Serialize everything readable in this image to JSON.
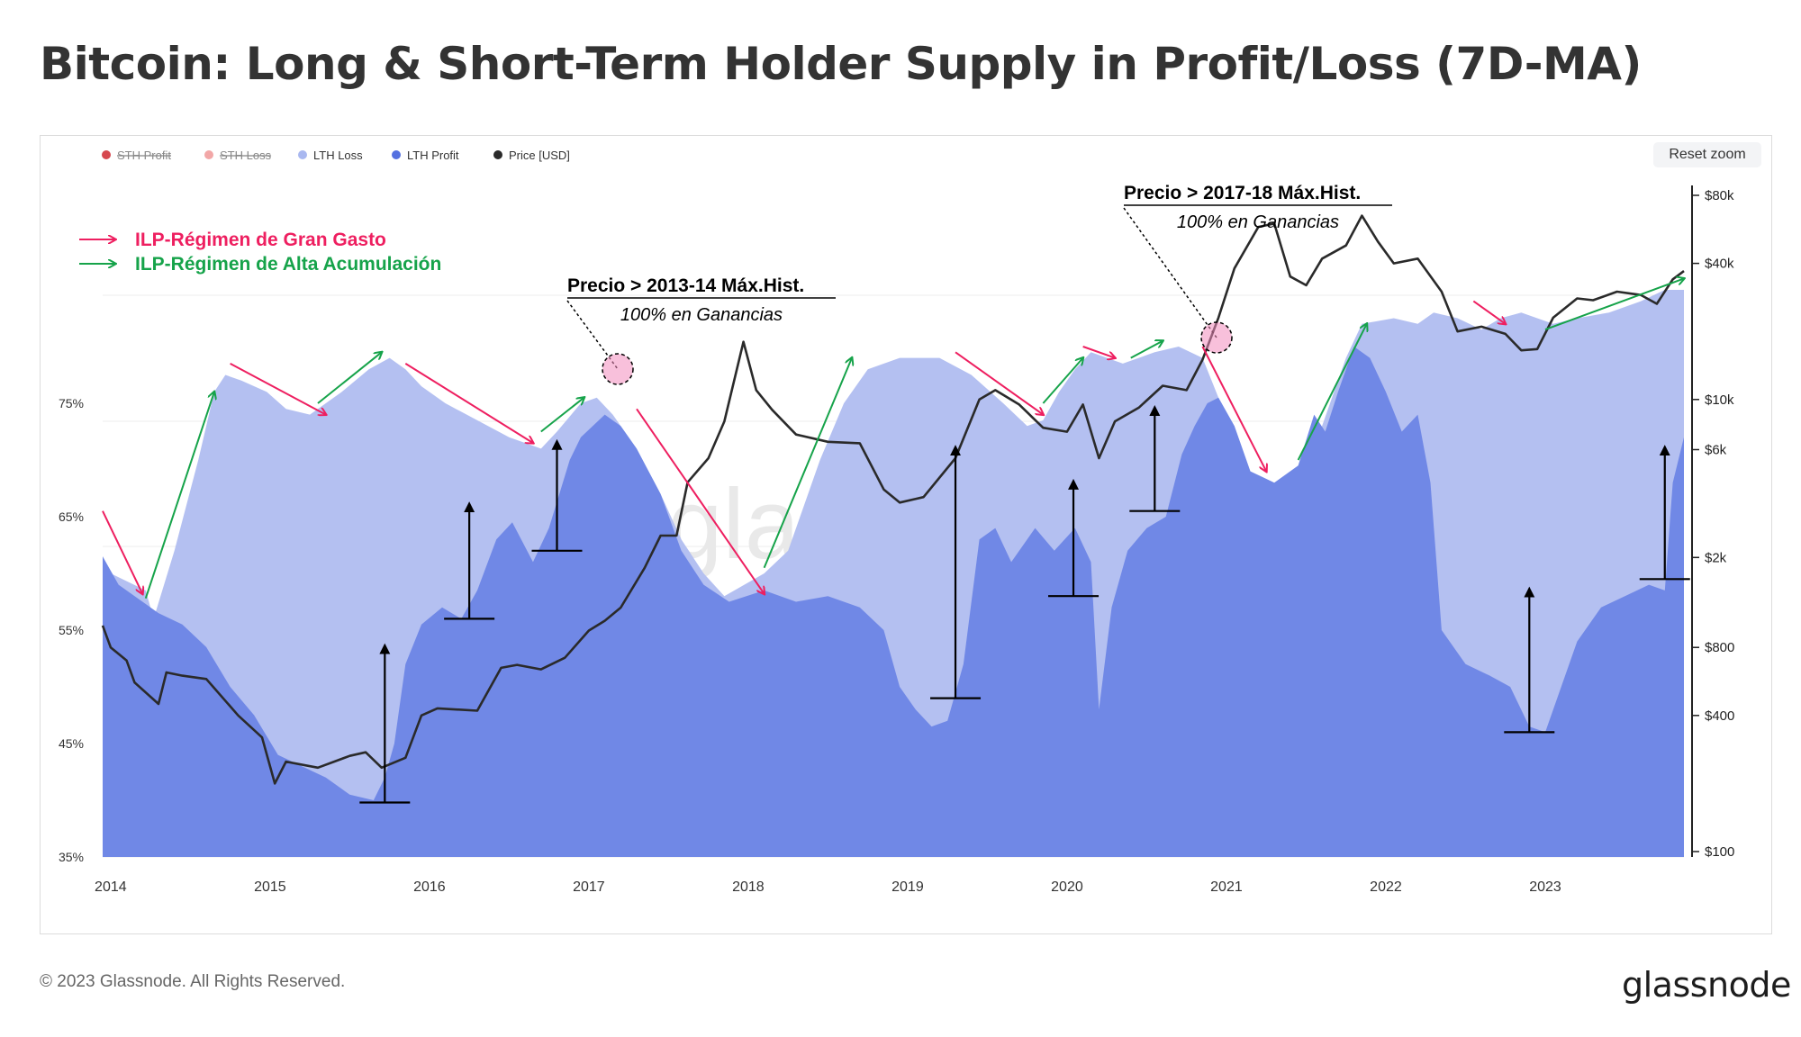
{
  "title": "Bitcoin: Long & Short-Term Holder Supply in Profit/Loss (7D-MA)",
  "reset_zoom_label": "Reset zoom",
  "footer": {
    "copyright": "© 2023 Glassnode. All Rights Reserved.",
    "logo": "glassnode"
  },
  "watermark": "glassnode",
  "colors": {
    "lth_loss": "#b4c0f1",
    "lth_profit": "#7088e6",
    "price": "#2a2a2a",
    "sth_profit": "#d6474e",
    "sth_loss": "#f2a7a7",
    "spending_arrow": "#ee1f60",
    "accumulation_arrow": "#16a34a",
    "annotation": "#000000"
  },
  "chart_data": {
    "type": "area",
    "legend": [
      {
        "label": "STH Profit",
        "color": "#d6474e",
        "hidden": true
      },
      {
        "label": "STH Loss",
        "color": "#f2a7a7",
        "hidden": true
      },
      {
        "label": "LTH Loss",
        "color": "#a9b8f0",
        "hidden": false
      },
      {
        "label": "LTH Profit",
        "color": "#5470e0",
        "hidden": false
      },
      {
        "label": "Price [USD]",
        "color": "#2a2a2a",
        "hidden": false
      }
    ],
    "legend_position": "top-left",
    "x_ticks": [
      "2014",
      "2015",
      "2016",
      "2017",
      "2018",
      "2019",
      "2020",
      "2021",
      "2022",
      "2023"
    ],
    "x_range": [
      2013.95,
      2023.87
    ],
    "y_left_ticks": [
      "75%",
      "65%",
      "55%",
      "45%",
      "35%"
    ],
    "y_left_range": [
      35,
      80
    ],
    "y_right_ticks": [
      "$80k",
      "$40k",
      "$10k",
      "$6k",
      "$2k",
      "$800",
      "$400",
      "$100"
    ],
    "y_right_log_range": [
      100,
      80000
    ],
    "y_right_log_scale": true,
    "grid": true,
    "lth_total_supply_pct": [
      [
        2013.95,
        61.5
      ],
      [
        2014.0,
        60.0
      ],
      [
        2014.22,
        58.5
      ],
      [
        2014.27,
        56.0
      ],
      [
        2014.4,
        62.0
      ],
      [
        2014.55,
        70.0
      ],
      [
        2014.65,
        76.0
      ],
      [
        2014.72,
        77.5
      ],
      [
        2014.82,
        77.0
      ],
      [
        2014.98,
        76.0
      ],
      [
        2015.1,
        74.5
      ],
      [
        2015.25,
        74.0
      ],
      [
        2015.45,
        76.0
      ],
      [
        2015.62,
        78.0
      ],
      [
        2015.75,
        79.0
      ],
      [
        2015.85,
        78.0
      ],
      [
        2015.95,
        76.5
      ],
      [
        2016.1,
        75.0
      ],
      [
        2016.3,
        73.5
      ],
      [
        2016.5,
        72.0
      ],
      [
        2016.7,
        71.0
      ],
      [
        2016.8,
        72.5
      ],
      [
        2016.95,
        75.0
      ],
      [
        2017.05,
        75.5
      ],
      [
        2017.15,
        74.0
      ],
      [
        2017.3,
        71.0
      ],
      [
        2017.45,
        67.0
      ],
      [
        2017.58,
        63.0
      ],
      [
        2017.72,
        60.0
      ],
      [
        2017.85,
        58.0
      ],
      [
        2018.1,
        60.0
      ],
      [
        2018.25,
        62.0
      ],
      [
        2018.45,
        70.0
      ],
      [
        2018.6,
        75.0
      ],
      [
        2018.75,
        78.0
      ],
      [
        2018.95,
        79.0
      ],
      [
        2019.2,
        79.0
      ],
      [
        2019.4,
        77.5
      ],
      [
        2019.6,
        75.0
      ],
      [
        2019.75,
        73.0
      ],
      [
        2019.85,
        73.5
      ],
      [
        2019.95,
        76.0
      ],
      [
        2020.05,
        78.0
      ],
      [
        2020.15,
        79.5
      ],
      [
        2020.35,
        78.5
      ],
      [
        2020.55,
        79.5
      ],
      [
        2020.7,
        80.0
      ],
      [
        2020.85,
        79.0
      ],
      [
        2020.95,
        75.5
      ],
      [
        2021.05,
        73.0
      ],
      [
        2021.15,
        69.0
      ],
      [
        2021.3,
        68.0
      ],
      [
        2021.45,
        69.5
      ],
      [
        2021.55,
        71.0
      ],
      [
        2021.65,
        75.0
      ],
      [
        2021.75,
        79.0
      ],
      [
        2021.85,
        82.0
      ],
      [
        2022.05,
        82.5
      ],
      [
        2022.2,
        82.0
      ],
      [
        2022.3,
        83.0
      ],
      [
        2022.45,
        82.5
      ],
      [
        2022.6,
        81.5
      ],
      [
        2022.72,
        82.5
      ],
      [
        2022.85,
        83.0
      ],
      [
        2023.05,
        82.0
      ],
      [
        2023.2,
        82.5
      ],
      [
        2023.4,
        83.0
      ],
      [
        2023.6,
        84.0
      ],
      [
        2023.75,
        85.0
      ],
      [
        2023.87,
        85.0
      ]
    ],
    "lth_profit_pct": [
      [
        2013.95,
        61.5
      ],
      [
        2014.05,
        59.0
      ],
      [
        2014.2,
        57.5
      ],
      [
        2014.3,
        56.5
      ],
      [
        2014.45,
        55.5
      ],
      [
        2014.6,
        53.5
      ],
      [
        2014.75,
        50.0
      ],
      [
        2014.9,
        47.5
      ],
      [
        2015.05,
        44.0
      ],
      [
        2015.2,
        43.0
      ],
      [
        2015.35,
        42.0
      ],
      [
        2015.5,
        40.5
      ],
      [
        2015.65,
        40.0
      ],
      [
        2015.72,
        42.0
      ],
      [
        2015.78,
        45.0
      ],
      [
        2015.85,
        52.0
      ],
      [
        2015.95,
        55.5
      ],
      [
        2016.08,
        57.0
      ],
      [
        2016.2,
        56.0
      ],
      [
        2016.3,
        58.5
      ],
      [
        2016.42,
        63.0
      ],
      [
        2016.52,
        64.5
      ],
      [
        2016.65,
        61.0
      ],
      [
        2016.75,
        64.0
      ],
      [
        2016.88,
        70.0
      ],
      [
        2016.95,
        72.0
      ],
      [
        2017.1,
        74.0
      ],
      [
        2017.2,
        73.0
      ],
      [
        2017.3,
        71.0
      ],
      [
        2017.45,
        67.0
      ],
      [
        2017.58,
        62.0
      ],
      [
        2017.72,
        59.0
      ],
      [
        2017.88,
        57.5
      ],
      [
        2018.1,
        58.5
      ],
      [
        2018.3,
        57.5
      ],
      [
        2018.5,
        58.0
      ],
      [
        2018.7,
        57.0
      ],
      [
        2018.85,
        55.0
      ],
      [
        2018.95,
        50.0
      ],
      [
        2019.05,
        48.0
      ],
      [
        2019.15,
        46.5
      ],
      [
        2019.25,
        47.0
      ],
      [
        2019.35,
        52.0
      ],
      [
        2019.45,
        63.0
      ],
      [
        2019.55,
        64.0
      ],
      [
        2019.65,
        61.0
      ],
      [
        2019.8,
        64.0
      ],
      [
        2019.92,
        62.0
      ],
      [
        2020.05,
        64.0
      ],
      [
        2020.15,
        61.0
      ],
      [
        2020.2,
        48.0
      ],
      [
        2020.28,
        57.0
      ],
      [
        2020.38,
        62.0
      ],
      [
        2020.5,
        64.0
      ],
      [
        2020.62,
        65.0
      ],
      [
        2020.72,
        70.5
      ],
      [
        2020.8,
        73.0
      ],
      [
        2020.88,
        75.0
      ],
      [
        2020.95,
        75.5
      ],
      [
        2021.05,
        73.0
      ],
      [
        2021.15,
        69.0
      ],
      [
        2021.3,
        68.0
      ],
      [
        2021.45,
        69.5
      ],
      [
        2021.55,
        74.0
      ],
      [
        2021.62,
        72.5
      ],
      [
        2021.7,
        76.0
      ],
      [
        2021.8,
        80.0
      ],
      [
        2021.9,
        79.0
      ],
      [
        2022.0,
        76.0
      ],
      [
        2022.1,
        72.5
      ],
      [
        2022.2,
        74.0
      ],
      [
        2022.28,
        68.0
      ],
      [
        2022.35,
        55.0
      ],
      [
        2022.5,
        52.0
      ],
      [
        2022.65,
        51.0
      ],
      [
        2022.78,
        50.0
      ],
      [
        2022.9,
        46.5
      ],
      [
        2023.0,
        46.0
      ],
      [
        2023.1,
        50.0
      ],
      [
        2023.2,
        54.0
      ],
      [
        2023.35,
        57.0
      ],
      [
        2023.5,
        58.0
      ],
      [
        2023.65,
        59.0
      ],
      [
        2023.75,
        58.5
      ],
      [
        2023.8,
        68.0
      ],
      [
        2023.87,
        72.0
      ]
    ],
    "price_usd": [
      [
        2013.95,
        1000
      ],
      [
        2014.0,
        800
      ],
      [
        2014.1,
        700
      ],
      [
        2014.15,
        560
      ],
      [
        2014.3,
        450
      ],
      [
        2014.35,
        620
      ],
      [
        2014.45,
        600
      ],
      [
        2014.6,
        580
      ],
      [
        2014.8,
        400
      ],
      [
        2014.95,
        320
      ],
      [
        2015.03,
        200
      ],
      [
        2015.1,
        250
      ],
      [
        2015.3,
        235
      ],
      [
        2015.5,
        265
      ],
      [
        2015.6,
        275
      ],
      [
        2015.7,
        235
      ],
      [
        2015.85,
        260
      ],
      [
        2015.95,
        400
      ],
      [
        2016.05,
        430
      ],
      [
        2016.3,
        420
      ],
      [
        2016.45,
        650
      ],
      [
        2016.55,
        670
      ],
      [
        2016.7,
        640
      ],
      [
        2016.85,
        720
      ],
      [
        2017.0,
        950
      ],
      [
        2017.1,
        1050
      ],
      [
        2017.2,
        1200
      ],
      [
        2017.35,
        1800
      ],
      [
        2017.45,
        2500
      ],
      [
        2017.55,
        2500
      ],
      [
        2017.62,
        4300
      ],
      [
        2017.75,
        5500
      ],
      [
        2017.85,
        8000
      ],
      [
        2017.97,
        18000
      ],
      [
        2018.05,
        11000
      ],
      [
        2018.15,
        9000
      ],
      [
        2018.3,
        7000
      ],
      [
        2018.5,
        6500
      ],
      [
        2018.7,
        6400
      ],
      [
        2018.85,
        4000
      ],
      [
        2018.95,
        3500
      ],
      [
        2019.1,
        3700
      ],
      [
        2019.3,
        5500
      ],
      [
        2019.45,
        10000
      ],
      [
        2019.55,
        11000
      ],
      [
        2019.7,
        9500
      ],
      [
        2019.85,
        7500
      ],
      [
        2020.0,
        7200
      ],
      [
        2020.1,
        9500
      ],
      [
        2020.2,
        5500
      ],
      [
        2020.3,
        8000
      ],
      [
        2020.45,
        9200
      ],
      [
        2020.6,
        11500
      ],
      [
        2020.75,
        11000
      ],
      [
        2020.85,
        15000
      ],
      [
        2020.95,
        23000
      ],
      [
        2021.05,
        38000
      ],
      [
        2021.2,
        58000
      ],
      [
        2021.3,
        60000
      ],
      [
        2021.4,
        35000
      ],
      [
        2021.5,
        32000
      ],
      [
        2021.6,
        42000
      ],
      [
        2021.75,
        48000
      ],
      [
        2021.85,
        65000
      ],
      [
        2021.95,
        50000
      ],
      [
        2022.05,
        40000
      ],
      [
        2022.2,
        42000
      ],
      [
        2022.35,
        30000
      ],
      [
        2022.45,
        20000
      ],
      [
        2022.6,
        21000
      ],
      [
        2022.75,
        19500
      ],
      [
        2022.85,
        16500
      ],
      [
        2022.95,
        16700
      ],
      [
        2023.05,
        23000
      ],
      [
        2023.2,
        28000
      ],
      [
        2023.3,
        27500
      ],
      [
        2023.45,
        30000
      ],
      [
        2023.6,
        29000
      ],
      [
        2023.7,
        26500
      ],
      [
        2023.8,
        34000
      ],
      [
        2023.87,
        37000
      ]
    ],
    "annotations": [
      {
        "id": "ath1",
        "label": "Precio > 2013-14 Máx.Hist.",
        "sublabel": "100% en Ganancias"
      },
      {
        "id": "ath2",
        "label": "Precio > 2017-18 Máx.Hist.",
        "sublabel": "100% en Ganancias"
      },
      {
        "id": "legend_spending",
        "label": "ILP-Régimen de Gran Gasto"
      },
      {
        "id": "legend_accumulation",
        "label": "ILP-Régimen de Alta Acumulación"
      }
    ],
    "spending_arrows": [
      [
        2013.95,
        65.5,
        2014.2,
        58.2
      ],
      [
        2014.75,
        78.5,
        2015.35,
        74.0
      ],
      [
        2015.85,
        78.5,
        2016.65,
        71.5
      ],
      [
        2017.3,
        74.5,
        2018.1,
        58.2
      ],
      [
        2019.3,
        79.5,
        2019.85,
        74.0
      ],
      [
        2020.1,
        80.0,
        2020.3,
        79.0
      ],
      [
        2020.85,
        80.0,
        2021.25,
        69.0
      ],
      [
        2022.55,
        84.0,
        2022.75,
        82.0
      ]
    ],
    "accumulation_arrows": [
      [
        2014.22,
        57.8,
        2014.65,
        76.0
      ],
      [
        2015.3,
        75.0,
        2015.7,
        79.5
      ],
      [
        2016.7,
        72.5,
        2016.97,
        75.5
      ],
      [
        2018.1,
        60.5,
        2018.65,
        79.0
      ],
      [
        2019.85,
        75.0,
        2020.1,
        79.0
      ],
      [
        2020.4,
        79.0,
        2020.6,
        80.5
      ],
      [
        2021.45,
        70.0,
        2021.88,
        82.0
      ],
      [
        2023.0,
        81.5,
        2023.87,
        86.0
      ]
    ],
    "rise_markers": [
      [
        2015.72,
        39.8,
        54.0
      ],
      [
        2016.25,
        56.0,
        66.5
      ],
      [
        2016.8,
        62.0,
        72.0
      ],
      [
        2019.3,
        49.0,
        71.5
      ],
      [
        2020.04,
        58.0,
        68.5
      ],
      [
        2020.55,
        65.5,
        75.0
      ],
      [
        2022.9,
        46.0,
        59.0
      ],
      [
        2023.75,
        59.5,
        71.5
      ]
    ]
  }
}
